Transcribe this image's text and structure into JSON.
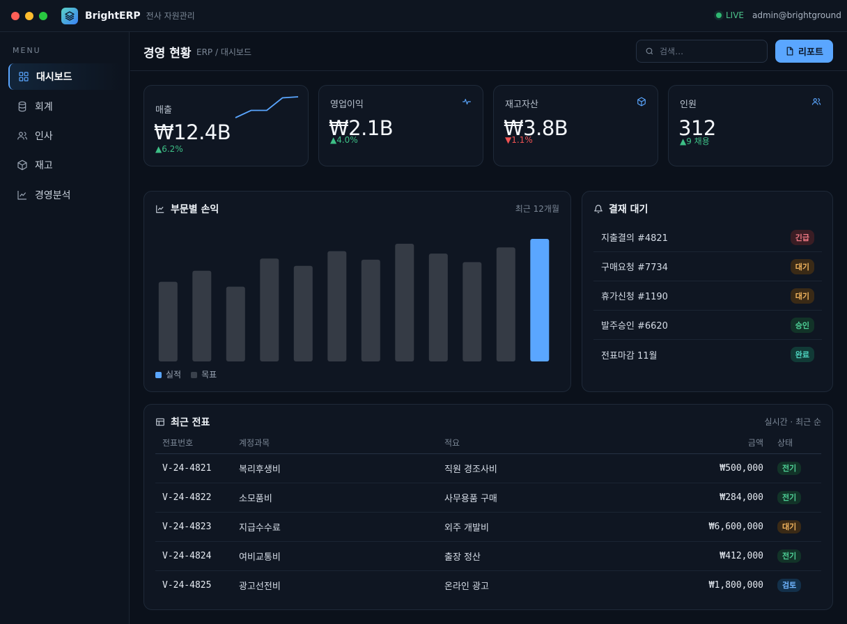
{
  "app": {
    "name": "BrightERP",
    "subtitle": "전사 자원관리",
    "live_label": "LIVE",
    "user": "admin@brightground"
  },
  "sidebar": {
    "menu_label": "MENU",
    "items": [
      {
        "label": "대시보드",
        "icon": "grid-icon",
        "active": true
      },
      {
        "label": "회계",
        "icon": "database-icon",
        "active": false
      },
      {
        "label": "인사",
        "icon": "users-icon",
        "active": false
      },
      {
        "label": "재고",
        "icon": "box-icon",
        "active": false
      },
      {
        "label": "경영분석",
        "icon": "chart-line-icon",
        "active": false
      }
    ]
  },
  "header": {
    "title": "경영 현황",
    "breadcrumb": "ERP / 대시보드",
    "search_placeholder": "검색…",
    "report_button": "리포트"
  },
  "kpis": [
    {
      "label": "매출",
      "value": "₩12.4B",
      "change": "▲6.2%",
      "trend": "up",
      "sparkline": [
        0.0,
        0.35,
        0.35,
        0.95,
        1.0
      ]
    },
    {
      "label": "영업이익",
      "value": "₩2.1B",
      "change": "▲4.0%",
      "trend": "up",
      "icon": "pulse-icon"
    },
    {
      "label": "재고자산",
      "value": "₩3.8B",
      "change": "▼1.1%",
      "trend": "down",
      "icon": "box-icon"
    },
    {
      "label": "인원",
      "value": "312",
      "change": "▲9 채용",
      "trend": "up",
      "icon": "users-icon"
    }
  ],
  "chart_panel": {
    "title": "부문별 손익",
    "meta": "최근 12개월",
    "legend": [
      {
        "label": "실적",
        "color": "#5aa6ff"
      },
      {
        "label": "목표",
        "color": "#3a414c"
      }
    ]
  },
  "chart_data": {
    "type": "bar",
    "values": [
      0.65,
      0.74,
      0.61,
      0.84,
      0.78,
      0.9,
      0.83,
      0.96,
      0.88,
      0.81,
      0.93,
      1.0
    ],
    "highlight_index": 11,
    "colors": {
      "bar": "#353b45",
      "highlight": "#5aa6ff"
    }
  },
  "approvals": {
    "title": "결재 대기",
    "items": [
      {
        "label": "지출결의 #4821",
        "status": "긴급",
        "tone": "red"
      },
      {
        "label": "구매요청 #7734",
        "status": "대기",
        "tone": "amber"
      },
      {
        "label": "휴가신청 #1190",
        "status": "대기",
        "tone": "amber"
      },
      {
        "label": "발주승인 #6620",
        "status": "승인",
        "tone": "green"
      },
      {
        "label": "전표마감 11월",
        "status": "완료",
        "tone": "teal"
      }
    ]
  },
  "vouchers": {
    "title": "최근 전표",
    "meta": "실시간 · 최근 순",
    "columns": [
      "전표번호",
      "계정과목",
      "적요",
      "금액",
      "상태"
    ],
    "rows": [
      {
        "id": "V-24-4821",
        "account": "복리후생비",
        "memo": "직원 경조사비",
        "amount": "₩500,000",
        "status": "전기",
        "tone": "green"
      },
      {
        "id": "V-24-4822",
        "account": "소모품비",
        "memo": "사무용품 구매",
        "amount": "₩284,000",
        "status": "전기",
        "tone": "green"
      },
      {
        "id": "V-24-4823",
        "account": "지급수수료",
        "memo": "외주 개발비",
        "amount": "₩6,600,000",
        "status": "대기",
        "tone": "amber"
      },
      {
        "id": "V-24-4824",
        "account": "여비교통비",
        "memo": "출장 정산",
        "amount": "₩412,000",
        "status": "전기",
        "tone": "green"
      },
      {
        "id": "V-24-4825",
        "account": "광고선전비",
        "memo": "온라인 광고",
        "amount": "₩1,800,000",
        "status": "검토",
        "tone": "blue"
      }
    ]
  }
}
